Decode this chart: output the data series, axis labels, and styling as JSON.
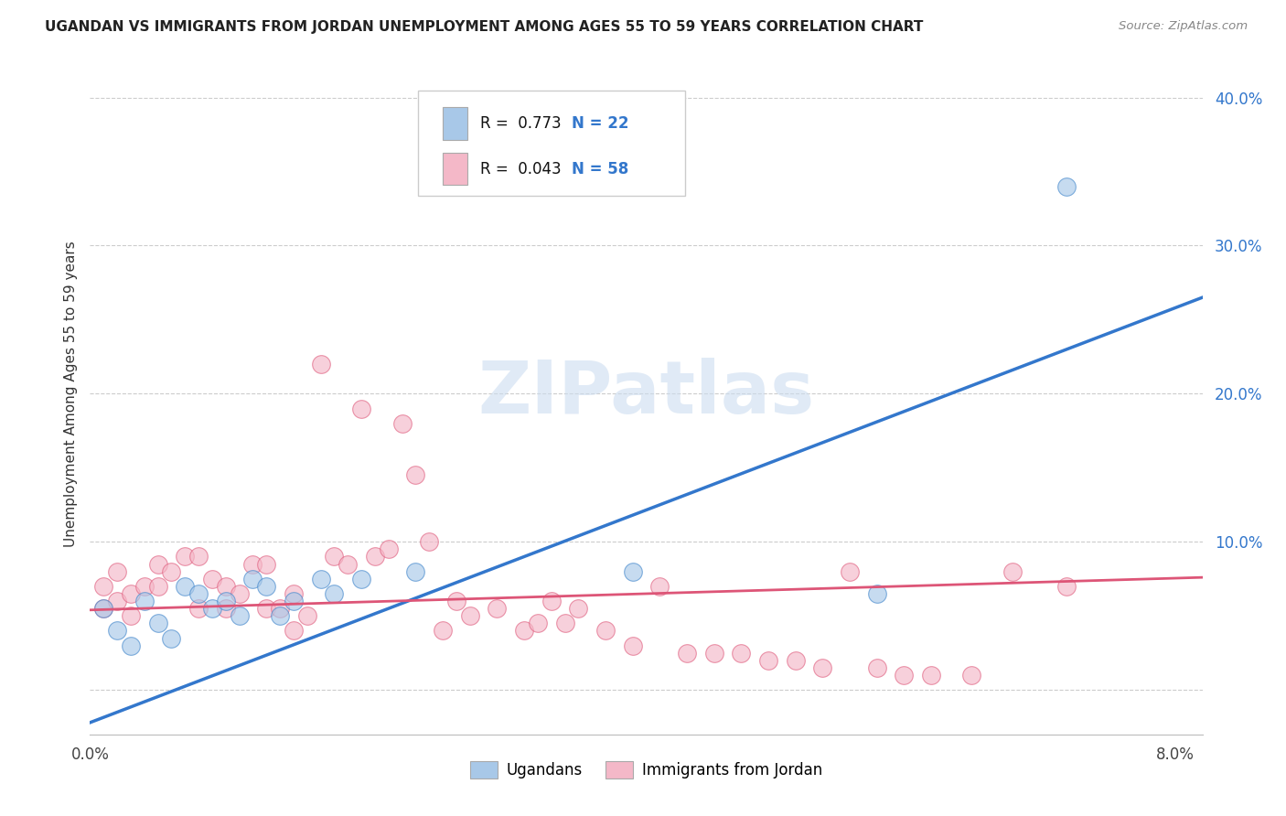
{
  "title": "UGANDAN VS IMMIGRANTS FROM JORDAN UNEMPLOYMENT AMONG AGES 55 TO 59 YEARS CORRELATION CHART",
  "source": "Source: ZipAtlas.com",
  "ylabel": "Unemployment Among Ages 55 to 59 years",
  "x_min": 0.0,
  "x_max": 0.082,
  "y_min": -0.03,
  "y_max": 0.43,
  "y_ticks": [
    0.0,
    0.1,
    0.2,
    0.3,
    0.4
  ],
  "y_tick_labels": [
    "",
    "10.0%",
    "20.0%",
    "30.0%",
    "40.0%"
  ],
  "x_ticks": [
    0.0,
    0.08
  ],
  "x_tick_labels": [
    "0.0%",
    "8.0%"
  ],
  "legend_r1": "0.773",
  "legend_n1": "22",
  "legend_r2": "0.043",
  "legend_n2": "58",
  "legend_label1": "Ugandans",
  "legend_label2": "Immigrants from Jordan",
  "watermark": "ZIPatlas",
  "color_blue": "#a8c8e8",
  "color_pink": "#f4b8c8",
  "color_blue_dark": "#4488cc",
  "color_pink_dark": "#e06080",
  "color_blue_line": "#3377cc",
  "color_pink_line": "#dd5577",
  "blue_line_x0": 0.0,
  "blue_line_y0": -0.022,
  "blue_line_x1": 0.082,
  "blue_line_y1": 0.265,
  "pink_line_x0": 0.0,
  "pink_line_y0": 0.054,
  "pink_line_x1": 0.082,
  "pink_line_y1": 0.076,
  "blue_scatter_x": [
    0.001,
    0.002,
    0.003,
    0.004,
    0.005,
    0.006,
    0.007,
    0.008,
    0.009,
    0.01,
    0.011,
    0.012,
    0.013,
    0.014,
    0.015,
    0.017,
    0.018,
    0.02,
    0.024,
    0.04,
    0.058,
    0.072
  ],
  "blue_scatter_y": [
    0.055,
    0.04,
    0.03,
    0.06,
    0.045,
    0.035,
    0.07,
    0.065,
    0.055,
    0.06,
    0.05,
    0.075,
    0.07,
    0.05,
    0.06,
    0.075,
    0.065,
    0.075,
    0.08,
    0.08,
    0.065,
    0.34
  ],
  "pink_scatter_x": [
    0.001,
    0.001,
    0.002,
    0.002,
    0.003,
    0.003,
    0.004,
    0.005,
    0.005,
    0.006,
    0.007,
    0.008,
    0.008,
    0.009,
    0.01,
    0.01,
    0.011,
    0.012,
    0.013,
    0.013,
    0.014,
    0.015,
    0.015,
    0.016,
    0.017,
    0.018,
    0.019,
    0.02,
    0.021,
    0.022,
    0.023,
    0.024,
    0.025,
    0.026,
    0.027,
    0.028,
    0.03,
    0.032,
    0.033,
    0.034,
    0.035,
    0.036,
    0.038,
    0.04,
    0.042,
    0.044,
    0.046,
    0.048,
    0.05,
    0.052,
    0.054,
    0.056,
    0.058,
    0.06,
    0.062,
    0.065,
    0.068,
    0.072
  ],
  "pink_scatter_y": [
    0.055,
    0.07,
    0.06,
    0.08,
    0.065,
    0.05,
    0.07,
    0.085,
    0.07,
    0.08,
    0.09,
    0.09,
    0.055,
    0.075,
    0.07,
    0.055,
    0.065,
    0.085,
    0.085,
    0.055,
    0.055,
    0.04,
    0.065,
    0.05,
    0.22,
    0.09,
    0.085,
    0.19,
    0.09,
    0.095,
    0.18,
    0.145,
    0.1,
    0.04,
    0.06,
    0.05,
    0.055,
    0.04,
    0.045,
    0.06,
    0.045,
    0.055,
    0.04,
    0.03,
    0.07,
    0.025,
    0.025,
    0.025,
    0.02,
    0.02,
    0.015,
    0.08,
    0.015,
    0.01,
    0.01,
    0.01,
    0.08,
    0.07
  ]
}
